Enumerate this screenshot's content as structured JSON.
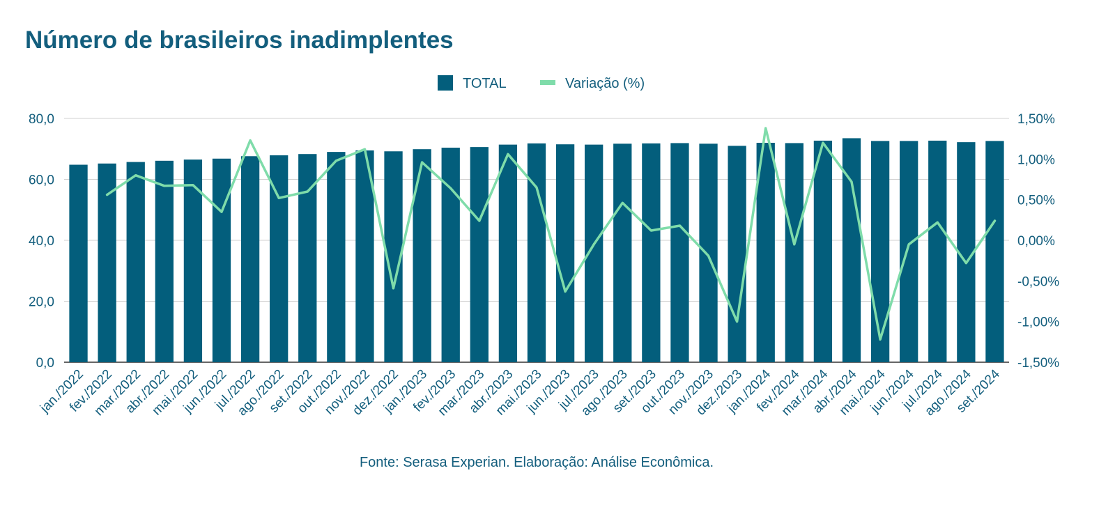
{
  "title": "Número de brasileiros inadimplentes",
  "source": "Fonte: Serasa Experian. Elaboração: Análise Econômica.",
  "colors": {
    "bar": "#035e7c",
    "line": "#7fdcaa",
    "text": "#135e7d",
    "grid": "#d0d0d0"
  },
  "chart_data": {
    "type": "bar",
    "categories": [
      "jan./2022",
      "fev./2022",
      "mar./2022",
      "abr./2022",
      "mai./2022",
      "jun./2022",
      "jul./2022",
      "ago./2022",
      "set./2022",
      "out./2022",
      "nov./2022",
      "dez./2022",
      "jan./2023",
      "fev./2023",
      "mar./2023",
      "abr./2023",
      "mai./2023",
      "jun./2023",
      "jul./2023",
      "ago./2023",
      "set./2023",
      "out./2023",
      "nov./2023",
      "dez./2023",
      "jan./2024",
      "fev./2024",
      "mar./2024",
      "abr./2024",
      "mai./2024",
      "jun./2024",
      "jul./2024",
      "ago./2024",
      "set./2024"
    ],
    "series": [
      {
        "name": "TOTAL",
        "type": "bar",
        "axis": "left",
        "values": [
          64.8,
          65.2,
          65.7,
          66.1,
          66.5,
          66.8,
          67.6,
          67.9,
          68.3,
          69.0,
          69.5,
          69.2,
          69.9,
          70.4,
          70.6,
          71.4,
          71.8,
          71.5,
          71.4,
          71.7,
          71.8,
          71.9,
          71.7,
          71.0,
          72.0,
          71.9,
          72.7,
          73.5,
          72.6,
          72.6,
          72.7,
          72.2,
          72.6
        ]
      },
      {
        "name": "Variação (%)",
        "type": "line",
        "axis": "right",
        "values": [
          null,
          0.56,
          0.8,
          0.67,
          0.68,
          0.35,
          1.23,
          0.52,
          0.6,
          0.98,
          1.12,
          -0.59,
          0.96,
          0.64,
          0.24,
          1.06,
          0.65,
          -0.63,
          -0.05,
          0.46,
          0.12,
          0.18,
          -0.19,
          -1.0,
          1.38,
          -0.05,
          1.2,
          0.72,
          -1.22,
          -0.05,
          0.22,
          -0.28,
          0.24
        ]
      }
    ],
    "left_axis": {
      "ylim": [
        0,
        80
      ],
      "ticks": [
        0,
        20,
        40,
        60,
        80
      ],
      "tick_labels": [
        "0,0",
        "20,0",
        "40,0",
        "60,0",
        "80,0"
      ]
    },
    "right_axis": {
      "ylim": [
        -1.5,
        1.5
      ],
      "ticks": [
        -1.5,
        -1.0,
        -0.5,
        0.0,
        0.5,
        1.0,
        1.5
      ],
      "tick_labels": [
        "-1,50%",
        "-1,00%",
        "-0,50%",
        "0,00%",
        "0,50%",
        "1,00%",
        "1,50%"
      ]
    },
    "grid": true,
    "legend": "top-center",
    "xlabel": "",
    "ylabel": ""
  }
}
